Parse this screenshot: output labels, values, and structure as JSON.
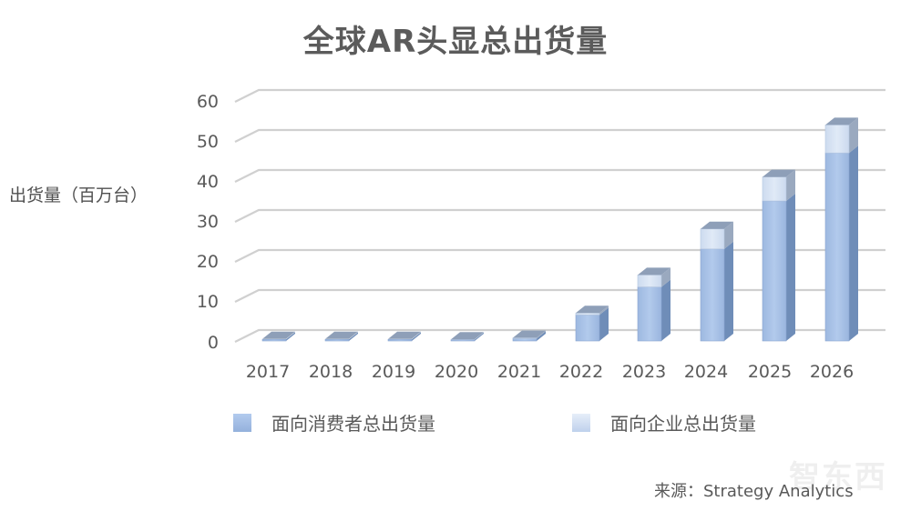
{
  "chart_data": {
    "type": "bar",
    "subtype": "stacked-3d-column",
    "title": "全球AR头显总出货量",
    "xlabel": "",
    "ylabel": "出货量（百万台）",
    "ylim": [
      0,
      60
    ],
    "yticks": [
      0,
      10,
      20,
      30,
      40,
      50,
      60
    ],
    "grid": true,
    "legend_position": "bottom",
    "categories": [
      "2017",
      "2018",
      "2019",
      "2020",
      "2021",
      "2022",
      "2023",
      "2024",
      "2025",
      "2026"
    ],
    "series": [
      {
        "name": "面向消费者总出货量",
        "color": "#a4bfe6",
        "values": [
          0.4,
          0.4,
          0.4,
          0.3,
          0.6,
          6.5,
          13.5,
          23,
          35,
          47
        ]
      },
      {
        "name": "面向企业总出货量",
        "color": "#d5e2f3",
        "values": [
          0.1,
          0.1,
          0.1,
          0.1,
          0.2,
          0.5,
          3,
          5,
          6,
          7
        ]
      }
    ],
    "annotations": [
      "来源：Strategy Analytics"
    ]
  },
  "title": "全球AR头显总出货量",
  "y_axis": {
    "label": "出货量（百万台）",
    "ticks": [
      "60",
      "50",
      "40",
      "30",
      "20",
      "10",
      "0"
    ]
  },
  "x_axis": {
    "ticks": [
      "2017",
      "2018",
      "2019",
      "2020",
      "2021",
      "2022",
      "2023",
      "2024",
      "2025",
      "2026"
    ]
  },
  "legend": {
    "consumer": "面向消费者总出货量",
    "enterprise": "面向企业总出货量"
  },
  "source": "来源：Strategy Analytics",
  "watermark": "智东西",
  "colors": {
    "consumer_front": "#a4bfe6",
    "consumer_side": "#6f8db8",
    "enterprise_front": "#d5e2f3",
    "enterprise_side": "#9aa9bf",
    "top_face": "#8e9fb8",
    "gridline": "#d0d0d0"
  }
}
